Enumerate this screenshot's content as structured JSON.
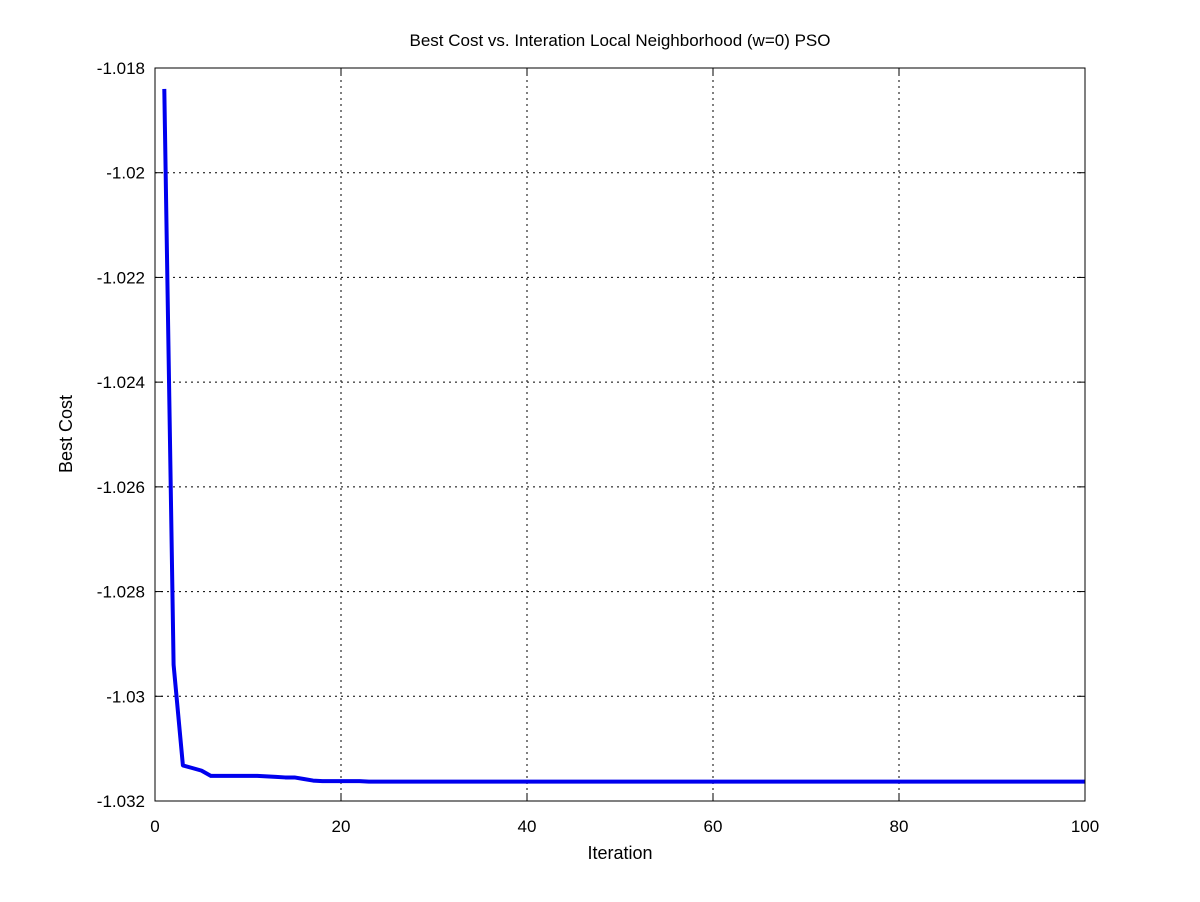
{
  "chart_data": {
    "type": "line",
    "title": "Best Cost vs. Interation Local Neighborhood (w=0) PSO",
    "xlabel": "Iteration",
    "ylabel": "Best Cost",
    "xlim": [
      0,
      100
    ],
    "ylim": [
      -1.032,
      -1.018
    ],
    "xticks": [
      0,
      20,
      40,
      60,
      80,
      100
    ],
    "xtick_labels": [
      "0",
      "20",
      "40",
      "60",
      "80",
      "100"
    ],
    "yticks": [
      -1.032,
      -1.03,
      -1.028,
      -1.026,
      -1.024,
      -1.022,
      -1.02,
      -1.018
    ],
    "ytick_labels": [
      "-1.032",
      "-1.03",
      "-1.028",
      "-1.026",
      "-1.024",
      "-1.022",
      "-1.02",
      "-1.018"
    ],
    "grid": true,
    "grid_style": "dotted",
    "series": [
      {
        "color": "#0000ee",
        "x": [
          1,
          2,
          3,
          4,
          5,
          6,
          7,
          8,
          9,
          10,
          11,
          12,
          13,
          14,
          15,
          16,
          17,
          18,
          19,
          20,
          21,
          22,
          23,
          24,
          25,
          30,
          40,
          50,
          60,
          70,
          80,
          90,
          100
        ],
        "y": [
          -1.0184,
          -1.0294,
          -1.03132,
          -1.03137,
          -1.03142,
          -1.03152,
          -1.03152,
          -1.03152,
          -1.03152,
          -1.03152,
          -1.03152,
          -1.03153,
          -1.03154,
          -1.03155,
          -1.03155,
          -1.03158,
          -1.03161,
          -1.03162,
          -1.03162,
          -1.03162,
          -1.03162,
          -1.03162,
          -1.03163,
          -1.03163,
          -1.03163,
          -1.03163,
          -1.03163,
          -1.03163,
          -1.03163,
          -1.03163,
          -1.03163,
          -1.03163,
          -1.03163
        ]
      }
    ]
  }
}
